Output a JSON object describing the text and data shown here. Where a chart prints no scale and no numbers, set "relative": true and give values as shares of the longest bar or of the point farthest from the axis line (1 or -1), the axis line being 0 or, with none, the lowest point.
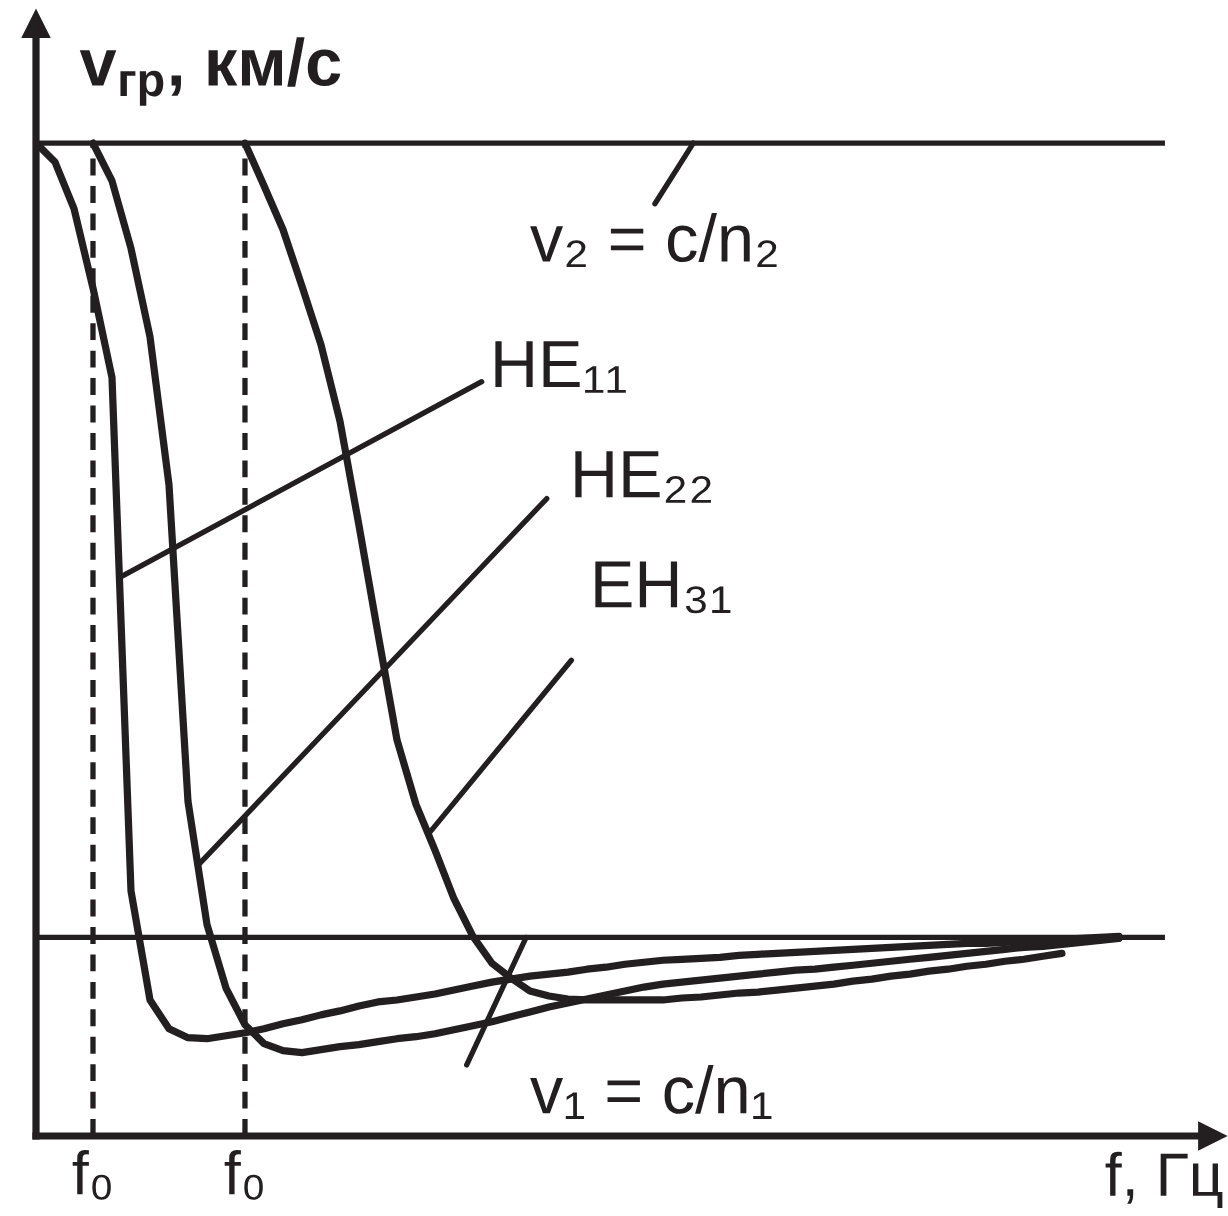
{
  "chart_data": {
    "type": "line",
    "relative": true,
    "xlabel": "f, Гц",
    "ylabel": "v$_{гр}$, км/с",
    "grid": "x",
    "categories": [
      null,
      null,
      null,
      "f₀",
      null,
      null,
      null,
      null,
      null,
      null,
      null,
      "f₀",
      null,
      null,
      null,
      null,
      null,
      null,
      null,
      null,
      null,
      null,
      null,
      null,
      null,
      null,
      null,
      null,
      null,
      null,
      null,
      null,
      null,
      null,
      null,
      null,
      null,
      null,
      null,
      null,
      null,
      null,
      null,
      null,
      null,
      null,
      null,
      null,
      null,
      null,
      null,
      null,
      null,
      null,
      null,
      null,
      null,
      null
    ],
    "series": [
      {
        "color": "#231f20",
        "values": [
          1.0,
          0.981,
          0.934,
          0.854,
          0.764,
          0.247,
          0.137,
          0.108,
          0.099,
          0.098,
          0.101,
          0.104,
          0.108,
          0.113,
          0.117,
          0.122,
          0.126,
          0.131,
          0.135,
          0.137,
          0.14,
          0.143,
          0.147,
          0.151,
          0.155,
          0.158,
          0.161,
          0.163,
          0.165,
          0.168,
          0.17,
          0.173,
          0.175,
          0.177,
          0.178,
          0.179,
          0.18,
          0.182,
          0.183,
          0.184,
          0.185,
          0.186,
          0.187,
          0.188,
          0.189,
          0.19,
          0.191,
          0.192,
          0.193,
          0.194,
          0.194,
          0.195,
          0.196,
          0.197,
          0.198,
          0.199,
          0.2,
          0.201
        ]
      },
      {
        "color": "#231f20",
        "values": [
          null,
          null,
          null,
          1.0,
          0.962,
          0.894,
          0.805,
          0.656,
          0.337,
          0.213,
          0.149,
          0.112,
          0.093,
          0.086,
          0.084,
          0.087,
          0.09,
          0.092,
          0.095,
          0.098,
          0.1,
          0.103,
          0.107,
          0.111,
          0.115,
          0.12,
          0.125,
          0.13,
          0.134,
          0.138,
          0.142,
          0.146,
          0.15,
          0.153,
          0.155,
          0.157,
          0.159,
          0.161,
          0.163,
          0.165,
          0.167,
          0.168,
          0.17,
          0.172,
          0.174,
          0.176,
          0.178,
          0.18,
          0.182,
          0.184,
          0.186,
          0.188,
          0.19,
          0.191,
          0.193,
          0.195,
          0.197,
          0.199
        ]
      },
      {
        "color": "#231f20",
        "values": [
          null,
          null,
          null,
          null,
          null,
          null,
          null,
          null,
          null,
          null,
          null,
          1.0,
          0.957,
          0.913,
          0.856,
          0.797,
          0.72,
          0.615,
          0.506,
          0.399,
          0.334,
          0.288,
          0.239,
          0.201,
          0.174,
          0.159,
          0.146,
          0.141,
          0.138,
          0.137,
          0.137,
          0.137,
          0.137,
          0.137,
          0.139,
          0.14,
          0.142,
          0.144,
          0.145,
          0.147,
          0.149,
          0.151,
          0.153,
          0.156,
          0.158,
          0.161,
          0.163,
          0.166,
          0.168,
          0.171,
          0.173,
          0.176,
          0.178,
          0.181,
          0.184,
          null,
          null,
          null
        ]
      }
    ],
    "annotations": [
      "v₂ = c/n₂",
      "HE₁₁",
      "HE₂₂",
      "EH₃₁",
      "v₁ = c/n₁"
    ],
    "ref_lines": [
      {
        "axis": "y",
        "value": 1,
        "color": "#231f20"
      },
      {
        "axis": "y",
        "value": 0.2,
        "color": "#231f20"
      }
    ]
  }
}
